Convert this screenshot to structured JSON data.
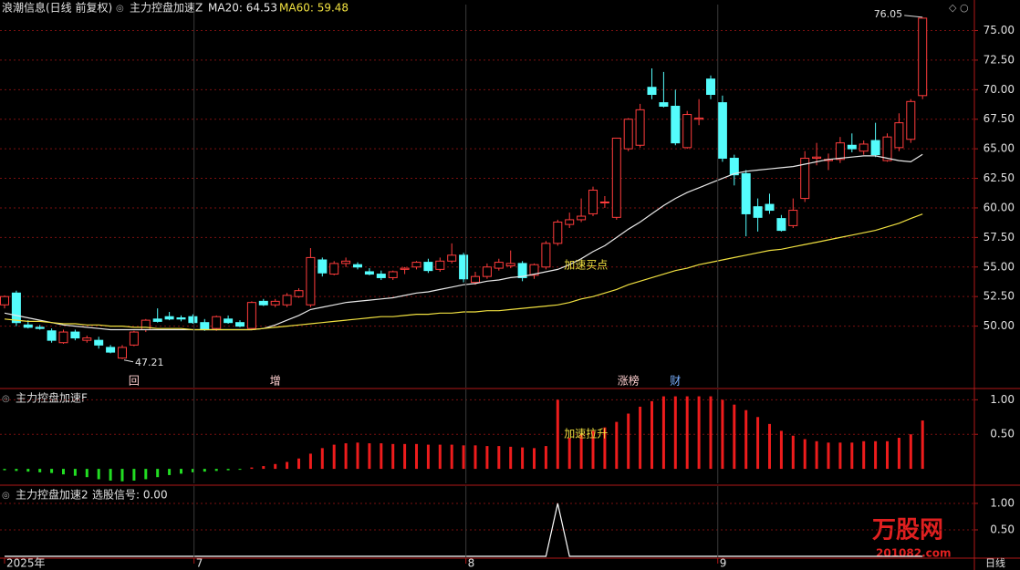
{
  "chart_data": [
    {
      "type": "candlestick",
      "title": "浪潮信息(日线 前复权)",
      "indicator": "主力控盘加速Z",
      "open": [
        51.8,
        52.8,
        50.1,
        49.9,
        49.6,
        48.6,
        49.5,
        48.8,
        48.8,
        48.2,
        47.3,
        48.4,
        49.7,
        50.6,
        50.8,
        50.7,
        50.8,
        50.3,
        49.8,
        50.6,
        50.3,
        49.8,
        52.1,
        51.8,
        51.8,
        52.5,
        51.8,
        55.6,
        54.4,
        55.3,
        55.2,
        54.6,
        54.4,
        54.1,
        54.8,
        55.0,
        55.4,
        54.8,
        55.5,
        56.0,
        53.7,
        54.2,
        54.9,
        55.1,
        55.3,
        54.3,
        55.0,
        57.0,
        58.6,
        59.0,
        59.5,
        60.5,
        59.2,
        65.0,
        65.3,
        70.2,
        68.9,
        68.6,
        65.1,
        67.5,
        70.9,
        68.9,
        64.2,
        62.9,
        60.1,
        60.3,
        59.1,
        58.5,
        60.8,
        64.2,
        64.0,
        64.1,
        65.3,
        64.8,
        65.7,
        64.0,
        65.1,
        65.8,
        69.5
      ],
      "high": [
        52.6,
        53.0,
        50.5,
        50.1,
        49.8,
        49.7,
        49.7,
        49.2,
        49.1,
        48.4,
        48.4,
        49.6,
        50.6,
        51.5,
        51.2,
        50.9,
        51.0,
        50.6,
        50.9,
        50.9,
        50.5,
        52.1,
        52.3,
        52.3,
        52.8,
        53.2,
        56.6,
        55.8,
        55.5,
        55.8,
        55.4,
        54.9,
        54.7,
        54.7,
        55.0,
        55.5,
        55.7,
        55.8,
        57.0,
        56.2,
        54.6,
        55.3,
        55.7,
        56.4,
        55.5,
        55.3,
        57.2,
        59.0,
        59.6,
        60.8,
        61.8,
        61.0,
        65.9,
        67.6,
        68.8,
        71.8,
        71.5,
        70.0,
        68.2,
        69.2,
        71.2,
        69.5,
        64.5,
        63.2,
        60.8,
        61.2,
        59.4,
        60.8,
        64.8,
        65.5,
        64.6,
        66.0,
        66.3,
        65.7,
        67.2,
        66.3,
        68.0,
        69.2,
        76.05
      ],
      "low": [
        51.5,
        50.0,
        49.8,
        49.7,
        48.6,
        48.5,
        48.8,
        48.6,
        48.1,
        47.7,
        47.21,
        48.3,
        49.5,
        50.3,
        50.5,
        50.4,
        50.2,
        49.6,
        49.6,
        50.2,
        49.9,
        49.7,
        51.7,
        51.6,
        51.6,
        52.4,
        51.6,
        54.2,
        54.3,
        55.0,
        54.8,
        54.3,
        53.9,
        53.9,
        54.4,
        54.8,
        54.5,
        54.6,
        55.3,
        53.7,
        53.5,
        54.0,
        54.7,
        54.9,
        53.8,
        54.0,
        54.8,
        56.8,
        58.3,
        58.8,
        59.3,
        60.0,
        59.0,
        64.8,
        65.1,
        69.2,
        68.5,
        65.3,
        65.0,
        67.0,
        69.2,
        63.9,
        61.9,
        57.6,
        58.0,
        59.5,
        58.0,
        58.3,
        60.5,
        63.6,
        63.2,
        63.8,
        64.7,
        64.5,
        64.3,
        63.9,
        64.8,
        65.5,
        69.2
      ],
      "close": [
        52.5,
        50.3,
        49.9,
        49.8,
        48.8,
        49.5,
        49.0,
        49.0,
        48.4,
        47.8,
        48.2,
        49.5,
        50.5,
        50.4,
        50.6,
        50.6,
        50.3,
        49.7,
        50.8,
        50.3,
        50.0,
        52.0,
        51.8,
        52.1,
        52.6,
        53.0,
        55.8,
        54.5,
        55.3,
        55.5,
        55.0,
        54.4,
        54.1,
        54.6,
        54.9,
        55.4,
        54.7,
        55.5,
        56.0,
        54.0,
        54.2,
        55.0,
        55.4,
        55.3,
        54.1,
        55.2,
        57.0,
        58.8,
        59.0,
        59.3,
        61.5,
        60.5,
        65.9,
        67.5,
        68.3,
        69.6,
        68.6,
        65.5,
        67.9,
        67.6,
        69.6,
        64.2,
        62.8,
        59.5,
        59.2,
        59.8,
        58.1,
        59.8,
        64.2,
        64.3,
        64.1,
        65.5,
        65.0,
        65.4,
        64.5,
        66.0,
        67.2,
        69.0,
        76.05
      ],
      "up_color": "#ff3c3c",
      "down_color": "#54fcfc",
      "series": [
        {
          "name": "MA20: 64.53",
          "color": "#e8e8e8",
          "values": [
            51.1,
            50.9,
            50.7,
            50.5,
            50.3,
            50.1,
            50.0,
            49.9,
            49.8,
            49.7,
            49.7,
            49.7,
            49.7,
            49.7,
            49.7,
            49.7,
            49.7,
            49.7,
            49.7,
            49.7,
            49.7,
            49.7,
            49.8,
            50.1,
            50.5,
            50.9,
            51.4,
            51.6,
            51.8,
            52.0,
            52.1,
            52.2,
            52.3,
            52.4,
            52.6,
            52.8,
            52.9,
            53.1,
            53.3,
            53.5,
            53.6,
            53.8,
            53.9,
            54.1,
            54.2,
            54.4,
            54.6,
            54.8,
            55.2,
            55.7,
            56.3,
            56.8,
            57.5,
            58.2,
            58.8,
            59.5,
            60.2,
            60.8,
            61.3,
            61.7,
            62.1,
            62.5,
            62.9,
            63.1,
            63.2,
            63.3,
            63.4,
            63.5,
            63.7,
            63.9,
            64.1,
            64.2,
            64.3,
            64.4,
            64.4,
            64.2,
            64.0,
            63.9,
            64.53
          ]
        },
        {
          "name": "MA60: 59.48",
          "color": "#f0e040",
          "values": [
            50.6,
            50.5,
            50.4,
            50.4,
            50.3,
            50.2,
            50.2,
            50.1,
            50.1,
            50.0,
            50.0,
            49.9,
            49.9,
            49.8,
            49.8,
            49.8,
            49.7,
            49.7,
            49.7,
            49.7,
            49.7,
            49.7,
            49.8,
            49.9,
            50.0,
            50.1,
            50.2,
            50.3,
            50.4,
            50.5,
            50.6,
            50.7,
            50.8,
            50.8,
            50.9,
            51.0,
            51.0,
            51.1,
            51.1,
            51.2,
            51.2,
            51.3,
            51.3,
            51.4,
            51.5,
            51.6,
            51.7,
            51.8,
            52.0,
            52.3,
            52.5,
            52.8,
            53.1,
            53.5,
            53.8,
            54.1,
            54.4,
            54.7,
            54.9,
            55.2,
            55.4,
            55.6,
            55.8,
            56.0,
            56.2,
            56.4,
            56.5,
            56.7,
            56.9,
            57.1,
            57.3,
            57.5,
            57.7,
            57.9,
            58.1,
            58.4,
            58.7,
            59.1,
            59.48
          ]
        }
      ],
      "annotations": [
        {
          "label": "47.21",
          "index": 10,
          "value": 47.21
        },
        {
          "label": "76.05",
          "index": 78,
          "value": 76.05
        },
        {
          "label": "加速买点",
          "index": 47,
          "value": 55.0
        }
      ],
      "events": [
        {
          "label": "回",
          "index": 11
        },
        {
          "label": "增",
          "index": 23
        },
        {
          "label": "涨榜",
          "index": 53
        },
        {
          "label": "财",
          "index": 57
        }
      ],
      "ylim": [
        44.8,
        77.2
      ],
      "yticks": [
        {
          "value": 50,
          "label": "50.00"
        },
        {
          "value": 52.5,
          "label": "52.50"
        },
        {
          "value": 55,
          "label": "55.00"
        },
        {
          "value": 57.5,
          "label": "57.50"
        },
        {
          "value": 60,
          "label": "60.00"
        },
        {
          "value": 62.5,
          "label": "62.50"
        },
        {
          "value": 65,
          "label": "65.00"
        },
        {
          "value": 67.5,
          "label": "67.50"
        },
        {
          "value": 70,
          "label": "70.00"
        },
        {
          "value": 72.5,
          "label": "72.50"
        },
        {
          "value": 75,
          "label": "75.00"
        }
      ],
      "grid": true
    },
    {
      "type": "bar",
      "title": "主力控盘加速F",
      "values": [
        -0.02,
        -0.03,
        -0.04,
        -0.05,
        -0.06,
        -0.08,
        -0.1,
        -0.12,
        -0.15,
        -0.17,
        -0.18,
        -0.17,
        -0.15,
        -0.12,
        -0.09,
        -0.07,
        -0.05,
        -0.04,
        -0.03,
        -0.02,
        -0.01,
        0.02,
        0.04,
        0.07,
        0.1,
        0.15,
        0.22,
        0.3,
        0.35,
        0.37,
        0.38,
        0.37,
        0.37,
        0.36,
        0.36,
        0.36,
        0.35,
        0.35,
        0.35,
        0.34,
        0.34,
        0.33,
        0.33,
        0.32,
        0.31,
        0.3,
        0.33,
        1.0,
        0.45,
        0.5,
        0.55,
        0.6,
        0.68,
        0.8,
        0.9,
        0.98,
        1.05,
        1.05,
        1.05,
        1.05,
        1.05,
        1.0,
        0.93,
        0.85,
        0.75,
        0.65,
        0.55,
        0.48,
        0.43,
        0.4,
        0.38,
        0.38,
        0.38,
        0.4,
        0.4,
        0.4,
        0.45,
        0.5,
        0.7
      ],
      "pos_color": "#ee1c1c",
      "neg_color": "#22dd22",
      "annotations": [
        {
          "label": "加速拉升",
          "index": 47,
          "value": 0.5
        }
      ],
      "ylim": [
        -0.21,
        1.15
      ],
      "yticks": [
        {
          "value": 0.5,
          "label": "0.50"
        },
        {
          "value": 1,
          "label": "1.00"
        }
      ],
      "grid": true
    },
    {
      "type": "line",
      "title": "主力控盘加速2",
      "subtitle": "选股信号: 0.00",
      "color": "#ffffff",
      "values": [
        0,
        0,
        0,
        0,
        0,
        0,
        0,
        0,
        0,
        0,
        0,
        0,
        0,
        0,
        0,
        0,
        0,
        0,
        0,
        0,
        0,
        0,
        0,
        0,
        0,
        0,
        0,
        0,
        0,
        0,
        0,
        0,
        0,
        0,
        0,
        0,
        0,
        0,
        0,
        0,
        0,
        0,
        0,
        0,
        0,
        0,
        0,
        1,
        0,
        0,
        0,
        0,
        0,
        0,
        0,
        0,
        0,
        0,
        0,
        0,
        0,
        0,
        0,
        0,
        0,
        0,
        0,
        0,
        0,
        0,
        0,
        0,
        0,
        0,
        0,
        0,
        0,
        0,
        0
      ],
      "ylim": [
        0,
        1.12
      ],
      "yticks": [
        {
          "value": 0.5,
          "label": "0.50"
        },
        {
          "value": 1,
          "label": "1.00"
        }
      ],
      "xticks": [
        {
          "value": 0,
          "label": "2025年"
        },
        {
          "value": 16.1,
          "label": "7"
        },
        {
          "value": 39.2,
          "label": "8"
        },
        {
          "value": 60.6,
          "label": "9"
        }
      ],
      "period": "日线",
      "grid": true
    }
  ],
  "watermark": {
    "brand": "万股网",
    "site": "201082.com"
  }
}
